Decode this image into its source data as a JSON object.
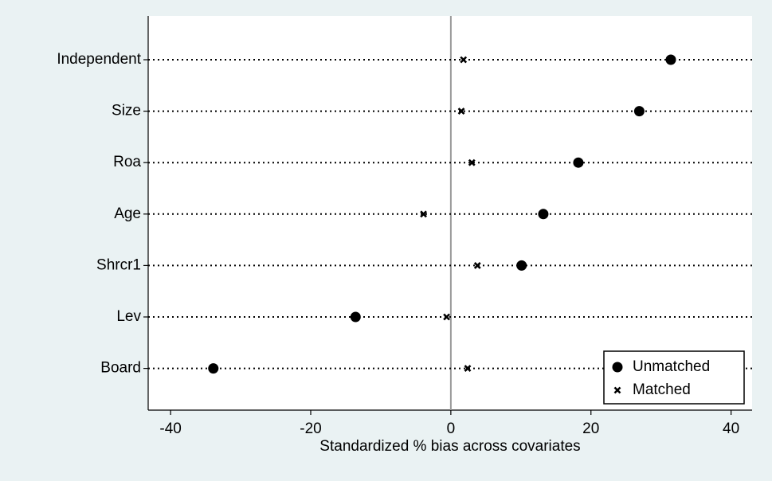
{
  "chart_data": {
    "type": "dot",
    "categories": [
      "Independent",
      "Size",
      "Roa",
      "Age",
      "Shrcr1",
      "Lev",
      "Board"
    ],
    "series": [
      {
        "name": "Unmatched",
        "color": "#000000",
        "marker": "circle",
        "values": [
          31.4,
          26.9,
          18.2,
          13.2,
          10.1,
          -13.6,
          -33.9
        ]
      },
      {
        "name": "Matched",
        "color": "#000000",
        "marker": "x",
        "values": [
          1.8,
          1.5,
          3.0,
          -3.9,
          3.8,
          -0.6,
          2.4
        ]
      }
    ],
    "xlabel": "Standardized % bias across covariates",
    "xlim": [
      -43.2,
      43
    ],
    "xticks": [
      -40,
      -20,
      0,
      20,
      40
    ],
    "xline": 0,
    "legend": "bottom-right"
  }
}
